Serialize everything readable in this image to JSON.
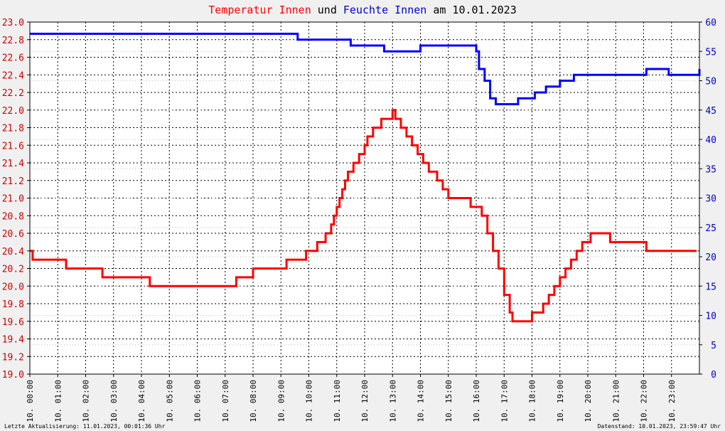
{
  "chart_data": {
    "type": "line",
    "title_parts": [
      {
        "text": "Temperatur Innen",
        "color": "#ff0000"
      },
      {
        "text": " und ",
        "color": "#000000"
      },
      {
        "text": "Feuchte Innen",
        "color": "#0000cc"
      },
      {
        "text": " am 10.01.2023",
        "color": "#000000"
      }
    ],
    "footer_left": "Letzte Aktualisierung: 11.01.2023, 00:01:36 Uhr",
    "footer_right": "Datenstand: 10.01.2023, 23:59:47 Uhr",
    "x_axis": {
      "range_hours": [
        0,
        24
      ],
      "tick_labels": [
        "10. 00:00",
        "10. 01:00",
        "10. 02:00",
        "10. 03:00",
        "10. 04:00",
        "10. 05:00",
        "10. 06:00",
        "10. 07:00",
        "10. 08:00",
        "10. 09:00",
        "10. 10:00",
        "10. 11:00",
        "10. 12:00",
        "10. 13:00",
        "10. 14:00",
        "10. 15:00",
        "10. 16:00",
        "10. 17:00",
        "10. 18:00",
        "10. 19:00",
        "10. 20:00",
        "10. 21:00",
        "10. 22:00",
        "10. 23:00"
      ]
    },
    "y_left": {
      "range": [
        19.0,
        23.0
      ],
      "tick_labels": [
        "19.0",
        "19.2",
        "19.4",
        "19.6",
        "19.8",
        "20.0",
        "20.2",
        "20.4",
        "20.6",
        "20.8",
        "21.0",
        "21.2",
        "21.4",
        "21.6",
        "21.8",
        "22.0",
        "22.2",
        "22.4",
        "22.6",
        "22.8",
        "23.0"
      ],
      "color": "#cc0000"
    },
    "y_right": {
      "range": [
        0,
        60
      ],
      "tick_labels": [
        "0",
        "5",
        "10",
        "15",
        "20",
        "25",
        "30",
        "35",
        "40",
        "45",
        "50",
        "55",
        "60"
      ],
      "color": "#0000cc"
    },
    "grid": true,
    "series": [
      {
        "name": "Temperatur Innen",
        "axis": "left",
        "color": "#ff0000",
        "points": [
          [
            0.0,
            20.4
          ],
          [
            0.1,
            20.3
          ],
          [
            1.0,
            20.3
          ],
          [
            1.3,
            20.2
          ],
          [
            2.5,
            20.2
          ],
          [
            2.6,
            20.1
          ],
          [
            4.0,
            20.1
          ],
          [
            4.3,
            20.0
          ],
          [
            6.0,
            20.0
          ],
          [
            6.3,
            20.0
          ],
          [
            7.3,
            20.0
          ],
          [
            7.4,
            20.1
          ],
          [
            7.9,
            20.1
          ],
          [
            8.0,
            20.2
          ],
          [
            9.1,
            20.2
          ],
          [
            9.2,
            20.3
          ],
          [
            9.8,
            20.3
          ],
          [
            9.9,
            20.4
          ],
          [
            10.2,
            20.4
          ],
          [
            10.3,
            20.5
          ],
          [
            10.5,
            20.5
          ],
          [
            10.6,
            20.6
          ],
          [
            10.8,
            20.7
          ],
          [
            10.9,
            20.8
          ],
          [
            11.0,
            20.9
          ],
          [
            11.1,
            21.0
          ],
          [
            11.2,
            21.1
          ],
          [
            11.3,
            21.2
          ],
          [
            11.4,
            21.3
          ],
          [
            11.6,
            21.4
          ],
          [
            11.8,
            21.5
          ],
          [
            12.0,
            21.6
          ],
          [
            12.1,
            21.7
          ],
          [
            12.3,
            21.8
          ],
          [
            12.6,
            21.9
          ],
          [
            12.9,
            21.9
          ],
          [
            13.0,
            22.0
          ],
          [
            13.1,
            21.9
          ],
          [
            13.3,
            21.8
          ],
          [
            13.5,
            21.7
          ],
          [
            13.7,
            21.6
          ],
          [
            13.9,
            21.5
          ],
          [
            14.1,
            21.4
          ],
          [
            14.3,
            21.3
          ],
          [
            14.6,
            21.2
          ],
          [
            14.8,
            21.1
          ],
          [
            15.0,
            21.0
          ],
          [
            15.6,
            21.0
          ],
          [
            15.8,
            20.9
          ],
          [
            16.1,
            20.9
          ],
          [
            16.2,
            20.8
          ],
          [
            16.4,
            20.6
          ],
          [
            16.6,
            20.4
          ],
          [
            16.8,
            20.2
          ],
          [
            17.0,
            19.9
          ],
          [
            17.2,
            19.7
          ],
          [
            17.3,
            19.6
          ],
          [
            17.9,
            19.6
          ],
          [
            18.0,
            19.7
          ],
          [
            18.3,
            19.7
          ],
          [
            18.4,
            19.8
          ],
          [
            18.6,
            19.9
          ],
          [
            18.8,
            20.0
          ],
          [
            19.0,
            20.1
          ],
          [
            19.2,
            20.2
          ],
          [
            19.4,
            20.3
          ],
          [
            19.6,
            20.4
          ],
          [
            19.8,
            20.5
          ],
          [
            20.1,
            20.6
          ],
          [
            20.6,
            20.6
          ],
          [
            20.8,
            20.5
          ],
          [
            22.0,
            20.5
          ],
          [
            22.1,
            20.4
          ],
          [
            23.9,
            20.4
          ]
        ]
      },
      {
        "name": "Feuchte Innen",
        "axis": "right",
        "color": "#0000ff",
        "points": [
          [
            0.0,
            58
          ],
          [
            9.5,
            58
          ],
          [
            9.6,
            57
          ],
          [
            11.4,
            57
          ],
          [
            11.5,
            56
          ],
          [
            12.6,
            56
          ],
          [
            12.7,
            55
          ],
          [
            13.9,
            55
          ],
          [
            14.0,
            56
          ],
          [
            15.9,
            56
          ],
          [
            16.0,
            55
          ],
          [
            16.1,
            52
          ],
          [
            16.3,
            50
          ],
          [
            16.5,
            47
          ],
          [
            16.7,
            46
          ],
          [
            17.4,
            46
          ],
          [
            17.5,
            47
          ],
          [
            18.0,
            47
          ],
          [
            18.1,
            48
          ],
          [
            18.4,
            48
          ],
          [
            18.5,
            49
          ],
          [
            18.9,
            49
          ],
          [
            19.0,
            50
          ],
          [
            19.4,
            50
          ],
          [
            19.5,
            51
          ],
          [
            20.9,
            51
          ],
          [
            22.0,
            51
          ],
          [
            22.1,
            52
          ],
          [
            22.8,
            52
          ],
          [
            22.9,
            51
          ],
          [
            23.9,
            51
          ],
          [
            24.0,
            52
          ]
        ]
      }
    ]
  }
}
